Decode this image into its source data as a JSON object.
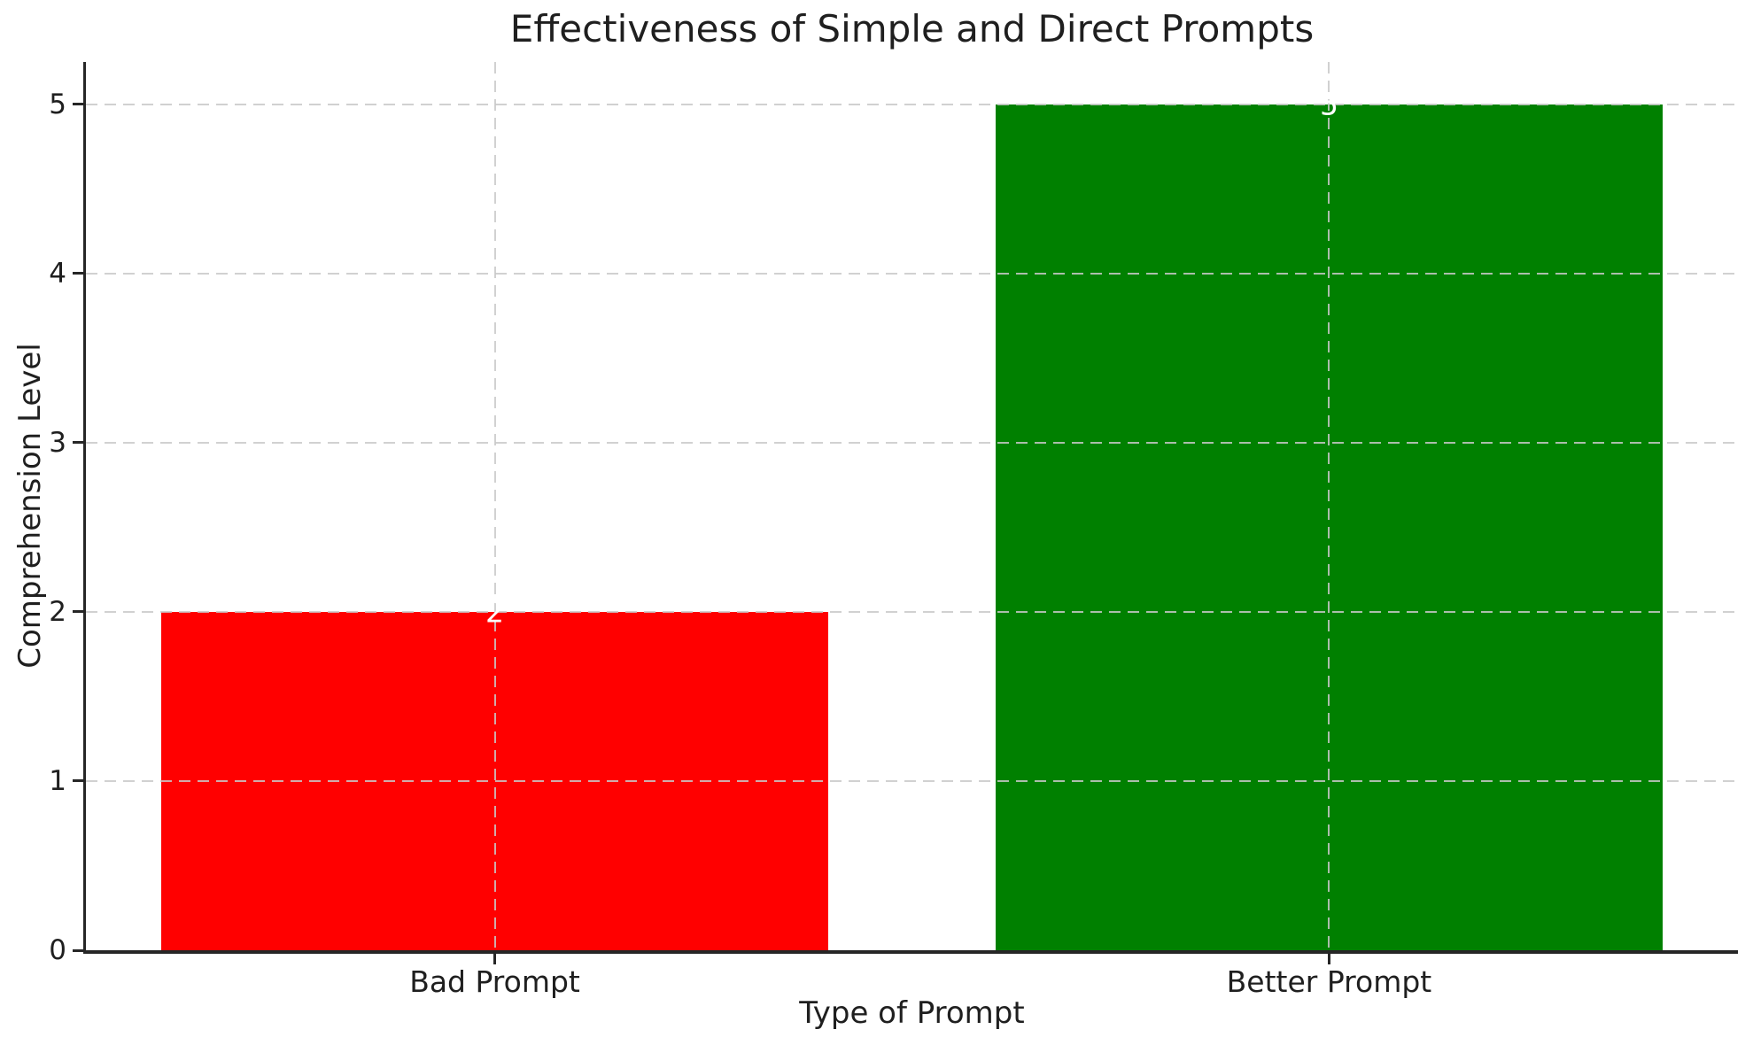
{
  "chart_data": {
    "type": "bar",
    "title": "Effectiveness of Simple and Direct Prompts",
    "xlabel": "Type of Prompt",
    "ylabel": "Comprehension Level",
    "categories": [
      "Bad Prompt",
      "Better Prompt"
    ],
    "values": [
      2,
      5
    ],
    "bar_colors": [
      "#ff0000",
      "#008000"
    ],
    "bar_value_labels": [
      "2",
      "5"
    ],
    "value_label_color": "#ffffff",
    "yticks": [
      0,
      1,
      2,
      3,
      4,
      5
    ],
    "ytick_labels": [
      "0",
      "1",
      "2",
      "3",
      "4",
      "5"
    ],
    "ylim": [
      0,
      5.25
    ],
    "xlim": [
      -0.49,
      1.49
    ],
    "bar_width": 0.8,
    "grid": "dashed",
    "grid_color": "#c9c9c9",
    "axis_color": "#262626",
    "text_color": "#1f1f1f",
    "legend_position": "none",
    "background_color": "#ffffff"
  }
}
